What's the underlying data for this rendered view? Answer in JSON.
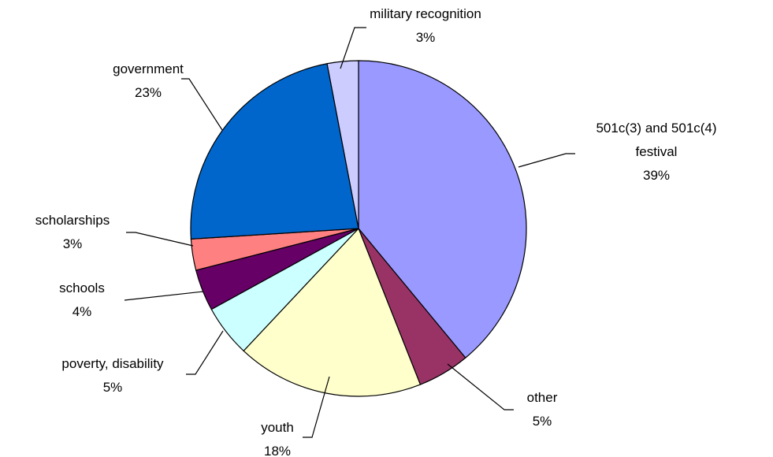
{
  "chart_data": {
    "type": "pie",
    "categories": [
      "501c(3) and 501c(4) festival",
      "other",
      "youth",
      "poverty, disability",
      "schools",
      "scholarships",
      "government",
      "military recognition"
    ],
    "values": [
      39,
      5,
      18,
      5,
      4,
      3,
      23,
      3
    ],
    "value_labels": [
      "39%",
      "5%",
      "18%",
      "5%",
      "4%",
      "3%",
      "23%",
      "3%"
    ],
    "colors": [
      "#9999ff",
      "#993366",
      "#ffffcc",
      "#ccffff",
      "#660066",
      "#ff8080",
      "#0066cc",
      "#ccccff"
    ]
  }
}
